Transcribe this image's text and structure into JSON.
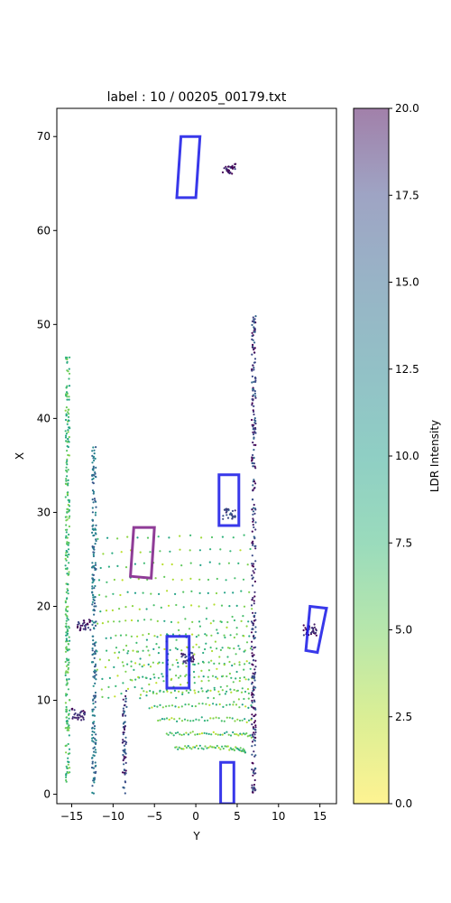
{
  "chart_data": {
    "type": "scatter",
    "title": "label : 10 / 00205_00179.txt",
    "xlabel": "Y",
    "ylabel": "X",
    "xlim": [
      -16.8,
      17.0
    ],
    "ylim": [
      -1.0,
      73.0
    ],
    "xticks": [
      -15,
      -10,
      -5,
      0,
      5,
      10,
      15
    ],
    "xtick_labels": [
      "−15",
      "−10",
      "−5",
      "0",
      "5",
      "10",
      "15"
    ],
    "yticks": [
      0,
      10,
      20,
      30,
      40,
      50,
      60,
      70
    ],
    "ytick_labels": [
      "0",
      "10",
      "20",
      "30",
      "40",
      "50",
      "60",
      "70"
    ],
    "grid": false,
    "colorbar": {
      "label": "LDR Intensity",
      "range": [
        0.0,
        20.0
      ],
      "ticks": [
        0.0,
        2.5,
        5.0,
        7.5,
        10.0,
        12.5,
        15.0,
        17.5,
        20.0
      ],
      "tick_labels": [
        "0.0",
        "2.5",
        "5.0",
        "7.5",
        "10.0",
        "12.5",
        "15.0",
        "17.5",
        "20.0"
      ],
      "colormap": "viridis_r",
      "alpha": 0.5
    },
    "point_groups": [
      {
        "kind": "arc",
        "cx": 1.0,
        "cy": 0.0,
        "r_min": 5.0,
        "r_max": 28.0,
        "r_step": 1.5,
        "theta_range": [
          -0.35,
          0.35
        ],
        "intensity": 6
      },
      {
        "kind": "wall",
        "y": -12.3,
        "x_range": [
          0,
          37
        ],
        "intensity": 14
      },
      {
        "kind": "wall",
        "y": 7.0,
        "x_range": [
          0,
          51
        ],
        "intensity": 18
      },
      {
        "kind": "wall",
        "y": -15.5,
        "x_range": [
          1,
          47
        ],
        "intensity": 7
      },
      {
        "kind": "wall",
        "y": -8.6,
        "x_range": [
          0,
          11
        ],
        "intensity": 17
      },
      {
        "kind": "cluster",
        "cy": 4.0,
        "cx": 66.5,
        "intensity": 19
      },
      {
        "kind": "cluster",
        "cy": 13.8,
        "cx": 17.5,
        "intensity": 19
      },
      {
        "kind": "cluster",
        "cy": 4.0,
        "cx": 29.8,
        "intensity": 17
      },
      {
        "kind": "cluster",
        "cy": -1.0,
        "cx": 14.5,
        "intensity": 18
      },
      {
        "kind": "cluster",
        "cy": -14.2,
        "cx": 8.5,
        "intensity": 19
      },
      {
        "kind": "cluster",
        "cy": -13.5,
        "cx": 18.0,
        "intensity": 19
      }
    ],
    "boxes": [
      {
        "color": "#1515e6",
        "corners": [
          [
            -1.8,
            70.0
          ],
          [
            0.5,
            70.0
          ],
          [
            0.0,
            63.5
          ],
          [
            -2.3,
            63.5
          ]
        ]
      },
      {
        "color": "#1515e6",
        "corners": [
          [
            2.8,
            34.0
          ],
          [
            5.2,
            34.0
          ],
          [
            5.2,
            28.6
          ],
          [
            2.8,
            28.6
          ]
        ]
      },
      {
        "color": "#7b1a85",
        "corners": [
          [
            -7.5,
            28.4
          ],
          [
            -5.0,
            28.4
          ],
          [
            -5.4,
            23.0
          ],
          [
            -7.9,
            23.2
          ]
        ]
      },
      {
        "color": "#1515e6",
        "corners": [
          [
            -3.5,
            16.8
          ],
          [
            -0.8,
            16.8
          ],
          [
            -0.8,
            11.3
          ],
          [
            -3.5,
            11.3
          ]
        ]
      },
      {
        "color": "#1515e6",
        "corners": [
          [
            13.8,
            20.0
          ],
          [
            15.8,
            19.8
          ],
          [
            14.7,
            15.1
          ],
          [
            13.3,
            15.3
          ]
        ]
      },
      {
        "color": "#1515e6",
        "corners": [
          [
            3.0,
            3.4
          ],
          [
            4.6,
            3.4
          ],
          [
            4.6,
            -1.0
          ],
          [
            3.0,
            -1.0
          ]
        ]
      }
    ]
  }
}
